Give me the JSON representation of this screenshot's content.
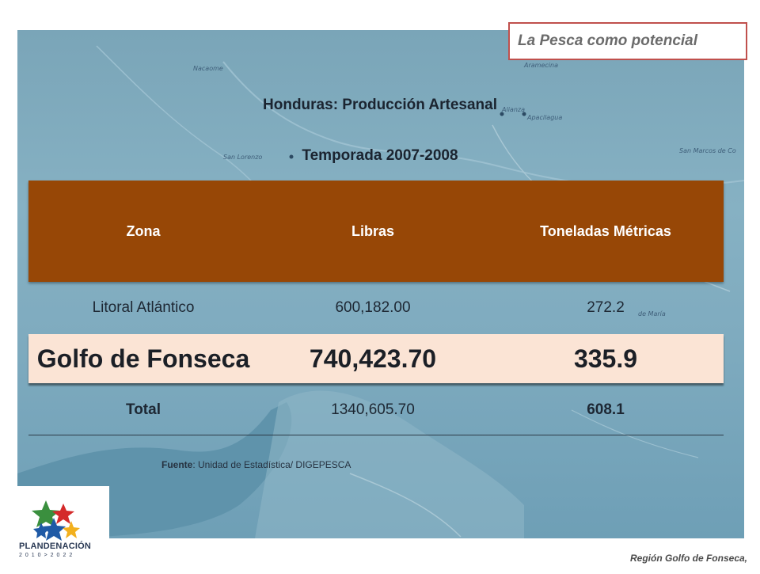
{
  "header_box": {
    "label": "La Pesca como potencial"
  },
  "title": {
    "line1": "Honduras: Producción Artesanal",
    "line2": "Temporada 2007-2008"
  },
  "table": {
    "columns": [
      "Zona",
      "Libras",
      "Toneladas Métricas"
    ],
    "rows": [
      {
        "zona": "Litoral Atlántico",
        "libras": "600,182.00",
        "toneladas": "272.2"
      },
      {
        "zona": "Golfo de Fonseca",
        "libras": "740,423.70",
        "toneladas": "335.9"
      },
      {
        "zona": "Total",
        "libras": "1340,605.70",
        "toneladas": "608.1"
      }
    ],
    "header_color": "#974706",
    "highlight_color": "#fbe4d5"
  },
  "source": {
    "label": "Fuente",
    "text": ": Unidad de Estadística/ DIGEPESCA"
  },
  "map_labels": [
    "Nacaome",
    "Aramecina",
    "Alianza",
    "San Lorenzo",
    "Apacilagua",
    "San Marcos de Co",
    "de María"
  ],
  "logo": {
    "name": "PLANDENACIÓN",
    "years": "2010>2022"
  },
  "footer": {
    "text": "Región Golfo de Fonseca,"
  }
}
